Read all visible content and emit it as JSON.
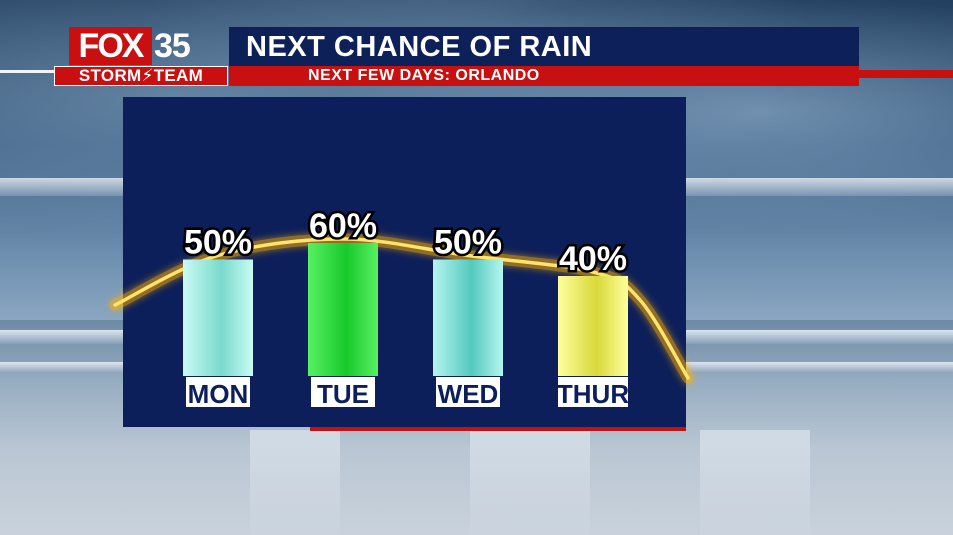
{
  "brand": {
    "logo_main": "FOX",
    "logo_number": "35",
    "logo_team": "STORM⚡TEAM"
  },
  "header": {
    "title": "NEXT CHANCE OF RAIN",
    "subtitle": "NEXT FEW DAYS: ORLANDO"
  },
  "colors": {
    "panel": "#0c1f5a",
    "accent_red": "#c91010",
    "trend_line": "#ffb000"
  },
  "chart_data": {
    "type": "bar",
    "title": "NEXT CHANCE OF RAIN",
    "subtitle": "NEXT FEW DAYS: ORLANDO",
    "categories": [
      "MON",
      "TUE",
      "WED",
      "THUR"
    ],
    "values": [
      50,
      60,
      50,
      40
    ],
    "labels": [
      "50%",
      "60%",
      "50%",
      "40%"
    ],
    "bar_colors": [
      [
        "#c9fbf3",
        "#79d9cc"
      ],
      [
        "#57f062",
        "#18c92b"
      ],
      [
        "#b6f5f0",
        "#52c9bd"
      ],
      [
        "#fdff9c",
        "#d9d83a"
      ]
    ],
    "unit": "%",
    "ylim": [
      0,
      100
    ],
    "grid": false,
    "legend": "none"
  }
}
